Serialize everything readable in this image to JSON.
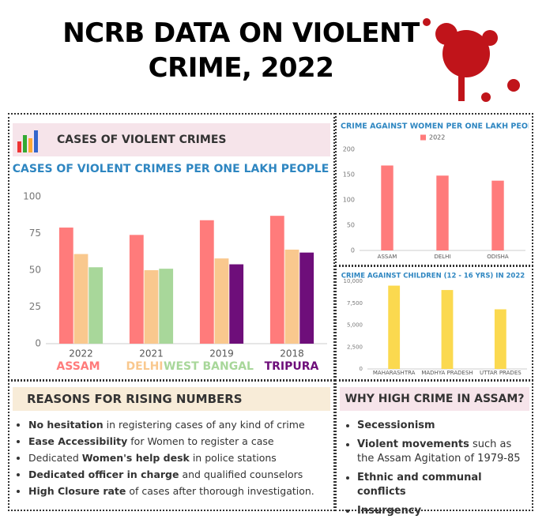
{
  "header": {
    "title": "NCRB DATA ON VIOLENT CRIME, 2022"
  },
  "section_title": "CASES OF VIOLENT CRIMES",
  "chart_data": [
    {
      "type": "bar",
      "title": "CASES OF VIOLENT CRIMES PER ONE LAKH PEOPLE",
      "categories": [
        "2022",
        "2021",
        "2019",
        "2018"
      ],
      "series": [
        {
          "name": "ASSAM",
          "color": "#ff7b7b",
          "values": [
            79,
            74,
            84,
            87
          ]
        },
        {
          "name": "DELHI",
          "color": "#f9c88e",
          "values": [
            61,
            50,
            58,
            64
          ]
        },
        {
          "name": "WEST BANGAL",
          "color": "#a8d79a",
          "values": [
            52,
            51,
            null,
            null
          ]
        },
        {
          "name": "TRIPURA",
          "color": "#6e0e7a",
          "values": [
            null,
            null,
            54,
            62
          ]
        }
      ],
      "ylim": [
        0,
        100
      ],
      "yticks": [
        0,
        25,
        50,
        75,
        100
      ],
      "grid": false
    },
    {
      "type": "bar",
      "title": "CRIME AGAINST WOMEN PER ONE LAKH PEOPLE",
      "categories": [
        "ASSAM",
        "DELHI",
        "ODISHA"
      ],
      "series": [
        {
          "name": "2022",
          "color": "#ff7b7b",
          "values": [
            168,
            148,
            138
          ]
        }
      ],
      "ylim": [
        0,
        200
      ],
      "yticks": [
        0,
        50,
        100,
        150,
        200
      ],
      "grid": false
    },
    {
      "type": "bar",
      "title": "CRIME AGAINST CHILDREN (12 - 16 YRS) IN 2022",
      "categories": [
        "MAHARASHTRA",
        "MADHYA PRADESH",
        "UTTAR PRADES"
      ],
      "series": [
        {
          "color": "#fbd94f",
          "values": [
            9500,
            9000,
            6800
          ]
        }
      ],
      "ylim": [
        0,
        10000
      ],
      "yticks": [
        0,
        {
          "value": 2500,
          "label": "2,500"
        },
        {
          "value": 5000,
          "label": "5,000"
        },
        {
          "value": 7500,
          "label": "7,500"
        },
        {
          "value": 10000,
          "label": "10,000"
        }
      ],
      "grid": false
    }
  ],
  "reasons": {
    "title": "REASONS FOR RISING NUMBERS",
    "items": [
      {
        "bold": "No hesitation",
        "text": " in registering cases of any kind of crime"
      },
      {
        "bold": "Ease Accessibility",
        "text": " for Women to register a case"
      },
      {
        "pre": "Dedicated ",
        "bold": "Women's help desk",
        "text": " in police stations"
      },
      {
        "bold": "Dedicated officer in charge",
        "text": " and qualified counselors"
      },
      {
        "bold": "High Closure rate",
        "text": " of cases  after thorough investigation."
      }
    ]
  },
  "assam": {
    "title": "WHY HIGH CRIME IN ASSAM?",
    "items": [
      {
        "bold": "Secessionism"
      },
      {
        "bold": "Violent movements",
        "text": " such as the Assam Agitation of 1979-85"
      },
      {
        "bold": "Ethnic and communal conflicts"
      },
      {
        "bold": "Insurgency"
      }
    ]
  }
}
